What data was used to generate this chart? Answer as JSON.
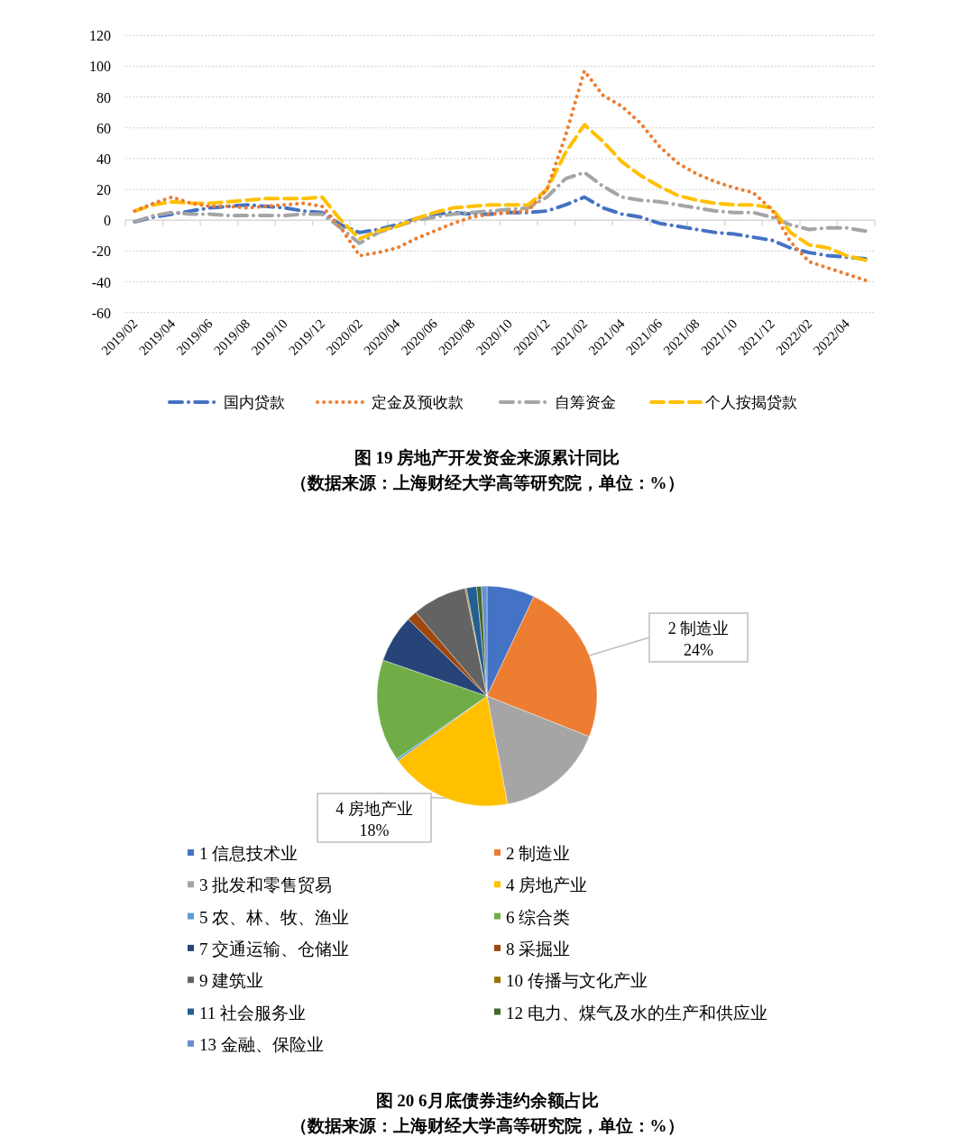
{
  "chart_data": [
    {
      "type": "line",
      "title": "图 19 房地产开发资金来源累计同比",
      "subtitle": "（数据来源：上海财经大学高等研究院，单位：%）",
      "categories": [
        "2019/02",
        null,
        "2019/04",
        null,
        "2019/06",
        null,
        "2019/08",
        null,
        "2019/10",
        null,
        "2019/12",
        null,
        "2020/02",
        null,
        "2020/04",
        null,
        "2020/06",
        null,
        "2020/08",
        null,
        "2020/10",
        null,
        "2020/12",
        null,
        "2021/02",
        null,
        "2021/04",
        null,
        "2021/06",
        null,
        "2021/08",
        null,
        "2021/10",
        null,
        "2021/12",
        null,
        "2022/02",
        null,
        "2022/04",
        null
      ],
      "ylim": [
        -60,
        120
      ],
      "yticks": [
        -60,
        -40,
        -20,
        0,
        20,
        40,
        60,
        80,
        100,
        120
      ],
      "grid": "y",
      "legend": "bottom",
      "marker": "none",
      "series": [
        {
          "name": "国内贷款",
          "color": "#4472c4",
          "line_style": "dashdot",
          "values": [
            -1,
            2,
            4,
            6,
            8,
            9,
            10,
            9,
            8,
            6,
            5,
            -3,
            -8,
            -6,
            -3,
            1,
            4,
            5,
            4,
            4,
            5,
            5,
            6,
            10,
            15,
            8,
            4,
            2,
            -2,
            -4,
            -6,
            -8,
            -9,
            -11,
            -13,
            -18,
            -21,
            -23,
            -24,
            -25
          ]
        },
        {
          "name": "定金及预收款",
          "color": "#ed7d31",
          "line_style": "dotted",
          "values": [
            6,
            11,
            15,
            11,
            9,
            9,
            8,
            9,
            10,
            11,
            9,
            -5,
            -23,
            -21,
            -18,
            -12,
            -7,
            -2,
            2,
            4,
            5,
            6,
            20,
            55,
            97,
            81,
            74,
            63,
            48,
            37,
            30,
            25,
            21,
            18,
            7,
            -14,
            -27,
            -31,
            -35,
            -39
          ]
        },
        {
          "name": "自筹资金",
          "color": "#a5a5a5",
          "line_style": "dashdot",
          "values": [
            -1,
            3,
            5,
            4,
            4,
            3,
            3,
            3,
            3,
            4,
            4,
            -5,
            -15,
            -8,
            -4,
            0,
            2,
            4,
            5,
            6,
            7,
            8,
            15,
            27,
            31,
            22,
            15,
            13,
            12,
            10,
            8,
            6,
            5,
            5,
            2,
            -3,
            -6,
            -5,
            -5,
            -7
          ]
        },
        {
          "name": "个人按揭贷款",
          "color": "#ffc000",
          "line_style": "dashed",
          "values": [
            6,
            10,
            12,
            11,
            11,
            12,
            13,
            14,
            14,
            14,
            15,
            0,
            -12,
            -7,
            -4,
            1,
            5,
            8,
            9,
            10,
            10,
            10,
            20,
            44,
            62,
            51,
            38,
            29,
            22,
            16,
            13,
            11,
            10,
            10,
            8,
            -8,
            -16,
            -18,
            -23,
            -26
          ]
        }
      ]
    },
    {
      "type": "pie",
      "title": "图 20 6月底债券违约余额占比",
      "subtitle": "（数据来源：上海财经大学高等研究院，单位：%）",
      "legend": "bottom",
      "categories": [
        "1 信息技术业",
        "2 制造业",
        "3 批发和零售贸易",
        "4 房地产业",
        "5 农、林、牧、渔业",
        "6 综合类",
        "7 交通运输、仓储业",
        "8 采掘业",
        "9 建筑业",
        "10 传播与文化产业",
        "11 社会服务业",
        "12 电力、煤气及水的生产和供应业",
        "13 金融、保险业"
      ],
      "values": [
        7,
        24,
        16,
        18,
        0.3,
        15,
        7,
        1.5,
        8,
        0.2,
        1.5,
        0.7,
        0.8
      ],
      "value_labels": [
        null,
        "24%",
        null,
        "18%",
        null,
        null,
        null,
        null,
        null,
        null,
        null,
        null,
        null
      ],
      "colors": [
        "#4472c4",
        "#ed7d31",
        "#a5a5a5",
        "#ffc000",
        "#5b9bd5",
        "#70ad47",
        "#264478",
        "#9e480e",
        "#636363",
        "#997300",
        "#255e91",
        "#43682b",
        "#698ed0"
      ]
    }
  ]
}
